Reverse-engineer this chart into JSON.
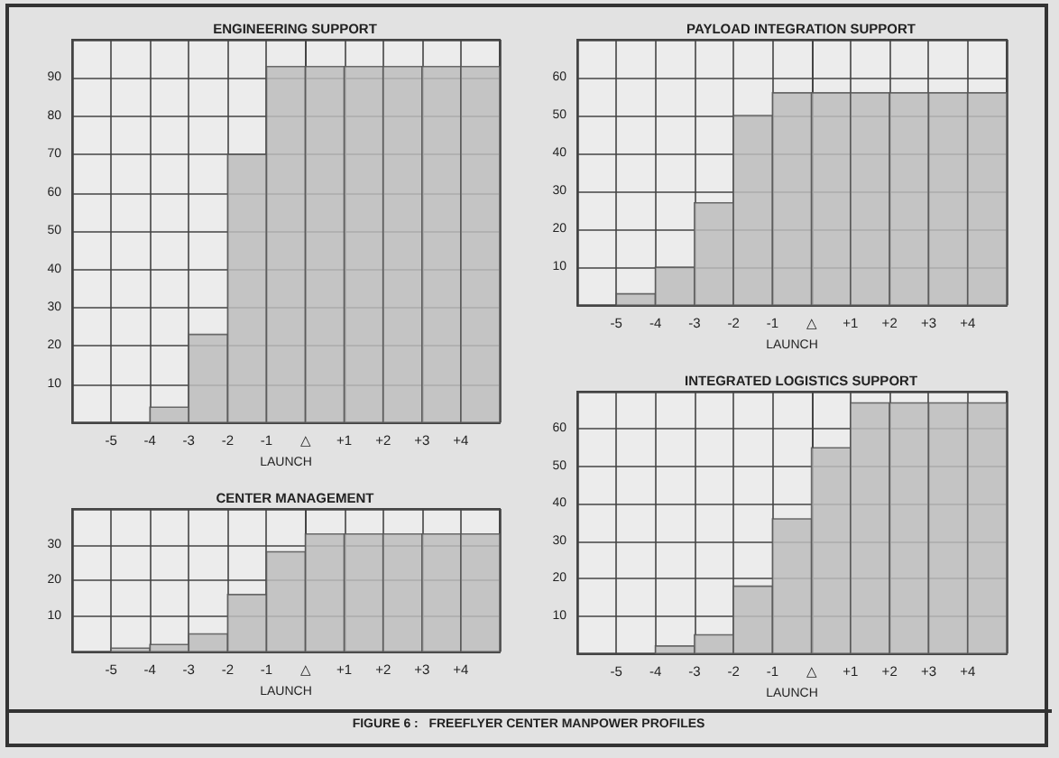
{
  "chart_data": [
    {
      "type": "histogram",
      "title": "ENGINEERING SUPPORT",
      "xlabel": "LAUNCH",
      "bins": [
        -6,
        -5,
        -4,
        -3,
        -2,
        -1,
        0,
        1,
        2,
        3,
        4,
        5
      ],
      "values": [
        0,
        0,
        4,
        23,
        70,
        93,
        93,
        93,
        93,
        93,
        93
      ],
      "color": "#bdbdbd",
      "xlim": [
        -6,
        5
      ],
      "xticks": [
        -5,
        -4,
        -3,
        -2,
        -1,
        {
          "value": 0,
          "label": "△"
        },
        {
          "value": 1,
          "label": "+1"
        },
        {
          "value": 2,
          "label": "+2"
        },
        {
          "value": 3,
          "label": "+3"
        },
        {
          "value": 4,
          "label": "+4"
        }
      ],
      "ylim": [
        0,
        100
      ],
      "yticks": [
        10,
        20,
        30,
        40,
        50,
        60,
        70,
        80,
        90
      ],
      "grid": true,
      "annotations": [
        "FIGURE 6 :   FREEFLYER CENTER MANPOWER PROFILES"
      ]
    },
    {
      "type": "histogram",
      "title": "PAYLOAD INTEGRATION SUPPORT",
      "xlabel": "LAUNCH",
      "bins": [
        -6,
        -5,
        -4,
        -3,
        -2,
        -1,
        0,
        1,
        2,
        3,
        4,
        5
      ],
      "values": [
        0,
        3,
        10,
        27,
        50,
        56,
        56,
        56,
        56,
        56,
        56
      ],
      "color": "#bdbdbd",
      "xlim": [
        -6,
        5
      ],
      "xticks": [
        -5,
        -4,
        -3,
        -2,
        -1,
        {
          "value": 0,
          "label": "△"
        },
        {
          "value": 1,
          "label": "+1"
        },
        {
          "value": 2,
          "label": "+2"
        },
        {
          "value": 3,
          "label": "+3"
        },
        {
          "value": 4,
          "label": "+4"
        }
      ],
      "ylim": [
        0,
        70
      ],
      "yticks": [
        10,
        20,
        30,
        40,
        50,
        60
      ],
      "grid": true
    },
    {
      "type": "histogram",
      "title": "CENTER MANAGEMENT",
      "xlabel": "LAUNCH",
      "bins": [
        -6,
        -5,
        -4,
        -3,
        -2,
        -1,
        0,
        1,
        2,
        3,
        4,
        5
      ],
      "values": [
        0,
        1,
        2,
        5,
        16,
        28,
        33,
        33,
        33,
        33,
        33
      ],
      "color": "#bdbdbd",
      "xlim": [
        -6,
        5
      ],
      "xticks": [
        -5,
        -4,
        -3,
        -2,
        -1,
        {
          "value": 0,
          "label": "△"
        },
        {
          "value": 1,
          "label": "+1"
        },
        {
          "value": 2,
          "label": "+2"
        },
        {
          "value": 3,
          "label": "+3"
        },
        {
          "value": 4,
          "label": "+4"
        }
      ],
      "ylim": [
        0,
        40
      ],
      "yticks": [
        10,
        20,
        30
      ],
      "grid": true
    },
    {
      "type": "histogram",
      "title": "INTEGRATED LOGISTICS SUPPORT",
      "xlabel": "LAUNCH",
      "bins": [
        -6,
        -5,
        -4,
        -3,
        -2,
        -1,
        0,
        1,
        2,
        3,
        4,
        5
      ],
      "values": [
        0,
        0,
        2,
        5,
        18,
        36,
        55,
        67,
        67,
        67,
        67
      ],
      "color": "#bdbdbd",
      "xlim": [
        -6,
        5
      ],
      "xticks": [
        -5,
        -4,
        -3,
        -2,
        -1,
        {
          "value": 0,
          "label": "△"
        },
        {
          "value": 1,
          "label": "+1"
        },
        {
          "value": 2,
          "label": "+2"
        },
        {
          "value": 3,
          "label": "+3"
        },
        {
          "value": 4,
          "label": "+4"
        }
      ],
      "ylim": [
        0,
        70
      ],
      "yticks": [
        10,
        20,
        30,
        40,
        50,
        60
      ],
      "grid": true
    }
  ]
}
